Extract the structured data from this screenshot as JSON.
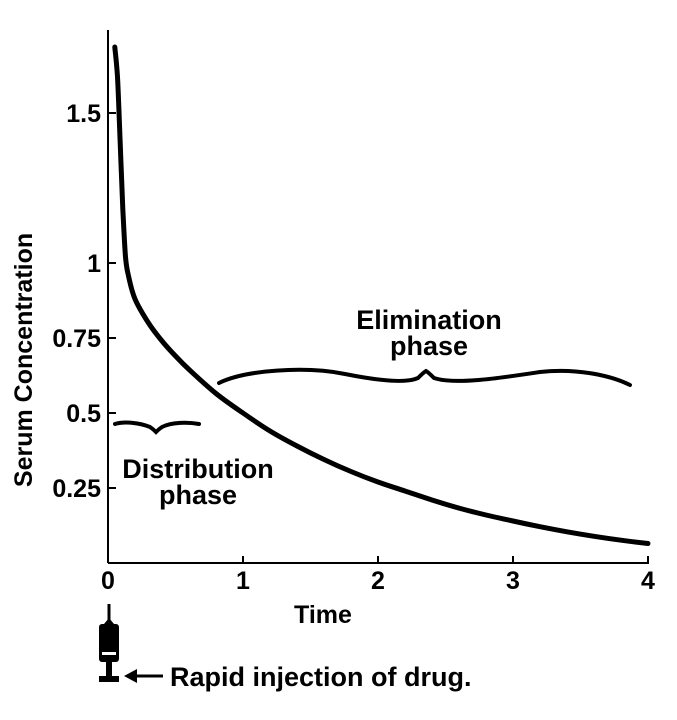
{
  "chart_data": {
    "type": "line",
    "xlabel": "Time",
    "ylabel": "Serum Concentration",
    "x_ticks": [
      {
        "value": 0,
        "label": "0"
      },
      {
        "value": 1,
        "label": "1"
      },
      {
        "value": 2,
        "label": "2"
      },
      {
        "value": 3,
        "label": "3"
      },
      {
        "value": 4,
        "label": "4"
      }
    ],
    "y_ticks": [
      {
        "value": 0.25,
        "label": "0.25"
      },
      {
        "value": 0.5,
        "label": "0.5"
      },
      {
        "value": 0.75,
        "label": "0.75"
      },
      {
        "value": 1,
        "label": "1"
      },
      {
        "value": 1.5,
        "label": "1.5"
      }
    ],
    "xlim": [
      0,
      4
    ],
    "ylim": [
      0,
      1.75
    ],
    "grid": false,
    "legend": "none",
    "series": [
      {
        "x": [
          0.05,
          0.07,
          0.09,
          0.11,
          0.13,
          0.15,
          0.2,
          0.3,
          0.4,
          0.5,
          0.6,
          0.8,
          1.0,
          1.2,
          1.4,
          1.6,
          1.8,
          2.0,
          2.2,
          2.4,
          2.6,
          2.8,
          3.0,
          3.2,
          3.4,
          3.6,
          3.8,
          4.0
        ],
        "y": [
          1.72,
          1.62,
          1.4,
          1.18,
          1.02,
          0.96,
          0.88,
          0.8,
          0.74,
          0.69,
          0.645,
          0.565,
          0.5,
          0.44,
          0.39,
          0.345,
          0.305,
          0.27,
          0.24,
          0.21,
          0.183,
          0.16,
          0.14,
          0.121,
          0.104,
          0.089,
          0.076,
          0.065
        ]
      }
    ],
    "annotations": [
      {
        "name": "elimination-phase-label",
        "lines": [
          "Elimination",
          "phase"
        ]
      },
      {
        "name": "distribution-phase-label",
        "lines": [
          "Distribution",
          "phase"
        ]
      },
      {
        "name": "injection-label",
        "text": "Rapid injection of drug."
      }
    ]
  }
}
